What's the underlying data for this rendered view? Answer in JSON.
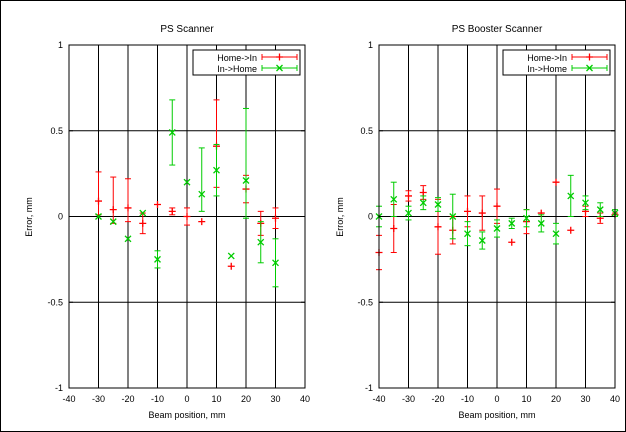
{
  "chart_data": [
    {
      "type": "scatter",
      "title": "PS Scanner",
      "xlabel": "Beam position, mm",
      "ylabel": "Error, mm",
      "xlim": [
        -40,
        40
      ],
      "ylim": [
        -1,
        1
      ],
      "xticks": [
        "-40",
        "-30",
        "-20",
        "-10",
        "0",
        "10",
        "20",
        "30",
        "40"
      ],
      "yticks": [
        "-1",
        "-0.5",
        "0",
        "0.5",
        "1"
      ],
      "grid": true,
      "error_bars": true,
      "legend_position": "top-right",
      "series": [
        {
          "name": "Home->In",
          "color": "#ff0000",
          "x": [
            -30,
            -25,
            -20,
            -15,
            -10,
            -5,
            0,
            5,
            10,
            15,
            20,
            25,
            30
          ],
          "y": [
            0.09,
            0.04,
            0.05,
            -0.04,
            0.07,
            0.03,
            0.0,
            -0.03,
            0.41,
            -0.29,
            0.16,
            -0.04,
            -0.01
          ],
          "err_low": [
            0.08,
            0.08,
            0.08,
            0.06,
            0.0,
            0.02,
            0.05,
            0.0,
            0.24,
            0.0,
            0.08,
            0.07,
            0.06
          ],
          "err_high": [
            0.17,
            0.19,
            0.17,
            0.06,
            0.0,
            0.02,
            0.05,
            0.0,
            0.27,
            0.0,
            0.08,
            0.07,
            0.06
          ]
        },
        {
          "name": "In->Home",
          "color": "#00cc00",
          "x": [
            -30,
            -25,
            -20,
            -15,
            -10,
            -5,
            0,
            5,
            10,
            15,
            20,
            25,
            30
          ],
          "y": [
            0.0,
            -0.03,
            -0.13,
            0.02,
            -0.25,
            0.49,
            0.2,
            0.13,
            0.27,
            -0.23,
            0.21,
            -0.15,
            -0.27
          ],
          "err_low": [
            0.0,
            0.0,
            0.0,
            0.0,
            0.05,
            0.19,
            0.0,
            0.1,
            0.15,
            0.0,
            0.22,
            0.12,
            0.14
          ],
          "err_high": [
            0.0,
            0.0,
            0.0,
            0.0,
            0.05,
            0.19,
            0.0,
            0.27,
            0.15,
            0.0,
            0.42,
            0.12,
            0.14
          ]
        }
      ]
    },
    {
      "type": "scatter",
      "title": "PS Booster Scanner",
      "xlabel": "Beam position, mm",
      "ylabel": "Error, mm",
      "xlim": [
        -40,
        40
      ],
      "ylim": [
        -1,
        1
      ],
      "xticks": [
        "-40",
        "-30",
        "-20",
        "-10",
        "0",
        "10",
        "20",
        "30",
        "40"
      ],
      "yticks": [
        "-1",
        "-0.5",
        "0",
        "0.5",
        "1"
      ],
      "grid": true,
      "error_bars": true,
      "legend_position": "top-right",
      "series": [
        {
          "name": "Home->In",
          "color": "#ff0000",
          "x": [
            -40,
            -35,
            -30,
            -25,
            -20,
            -15,
            -10,
            -5,
            0,
            5,
            10,
            15,
            20,
            25,
            30,
            35,
            40
          ],
          "y": [
            -0.21,
            -0.07,
            0.12,
            0.14,
            -0.06,
            -0.08,
            0.03,
            0.02,
            0.06,
            -0.15,
            -0.03,
            0.02,
            0.2,
            -0.08,
            0.03,
            -0.01,
            0.01
          ],
          "err_low": [
            0.1,
            0.14,
            0.03,
            0.04,
            0.16,
            0.08,
            0.09,
            0.1,
            0.1,
            0.0,
            0.07,
            0.0,
            0.0,
            0.0,
            0.03,
            0.03,
            0.01
          ],
          "err_high": [
            0.1,
            0.14,
            0.03,
            0.04,
            0.16,
            0.08,
            0.09,
            0.1,
            0.1,
            0.0,
            0.07,
            0.0,
            0.0,
            0.0,
            0.03,
            0.03,
            0.01
          ]
        },
        {
          "name": "In->Home",
          "color": "#00cc00",
          "x": [
            -40,
            -35,
            -30,
            -25,
            -20,
            -15,
            -10,
            -5,
            0,
            5,
            10,
            15,
            20,
            25,
            30,
            35,
            40
          ],
          "y": [
            0.0,
            0.1,
            0.02,
            0.08,
            0.07,
            0.0,
            -0.1,
            -0.14,
            -0.07,
            -0.04,
            -0.01,
            -0.04,
            -0.1,
            0.12,
            0.08,
            0.04,
            0.02
          ],
          "err_low": [
            0.06,
            0.1,
            0.04,
            0.04,
            0.04,
            0.13,
            0.07,
            0.05,
            0.05,
            0.03,
            0.05,
            0.05,
            0.06,
            0.12,
            0.04,
            0.04,
            0.02
          ],
          "err_high": [
            0.06,
            0.1,
            0.04,
            0.04,
            0.04,
            0.13,
            0.07,
            0.05,
            0.05,
            0.03,
            0.05,
            0.05,
            0.06,
            0.12,
            0.04,
            0.04,
            0.02
          ]
        }
      ]
    }
  ]
}
